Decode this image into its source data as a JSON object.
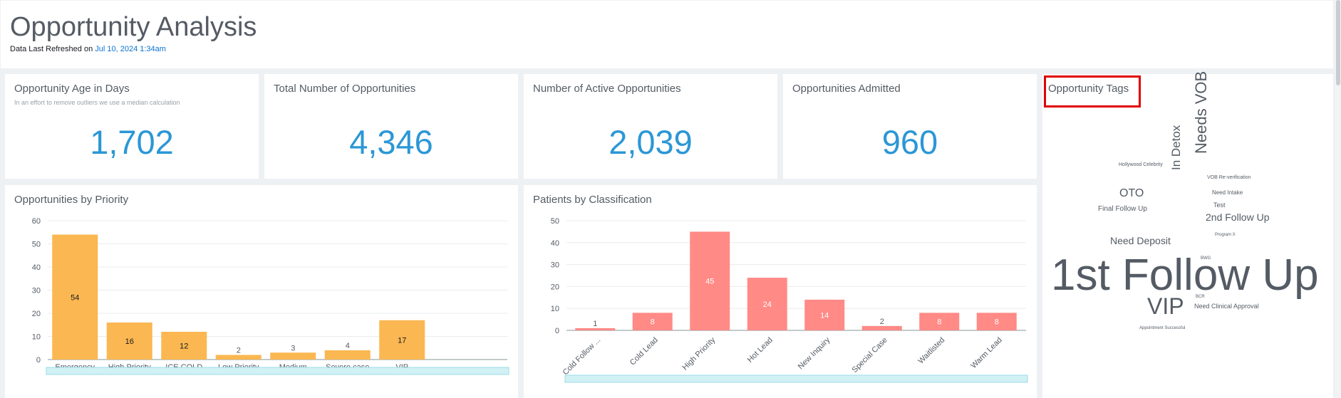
{
  "header": {
    "title": "Opportunity Analysis",
    "refresh_prefix": "Data Last Refreshed on ",
    "refresh_date": "Jul 10, 2024 1:34am"
  },
  "kpis": {
    "age": {
      "title": "Opportunity Age in Days",
      "subtitle": "In an effort to remove outliers we use a median calculation",
      "value": "1,702"
    },
    "total": {
      "title": "Total Number of Opportunities",
      "value": "4,346"
    },
    "active": {
      "title": "Number of Active Opportunities",
      "value": "2,039"
    },
    "admitted": {
      "title": "Opportunities Admitted",
      "value": "960"
    }
  },
  "charts": {
    "priority_title": "Opportunities by Priority",
    "classification_title": "Patients by Classification"
  },
  "tags": {
    "title": "Opportunity Tags",
    "words": [
      {
        "text": "Hollywood Celebrity",
        "size": "small"
      },
      {
        "text": "VOB Re-verification",
        "size": "small"
      },
      {
        "text": "Needs VOB",
        "size": "large",
        "vertical": true
      },
      {
        "text": "In Detox",
        "size": "medium",
        "vertical": true
      },
      {
        "text": "Need Intake",
        "size": "small"
      },
      {
        "text": "OTO",
        "size": "medium"
      },
      {
        "text": "Test",
        "size": "small"
      },
      {
        "text": "Final Follow Up",
        "size": "small"
      },
      {
        "text": "2nd Follow Up",
        "size": "medium"
      },
      {
        "text": "Program X",
        "size": "tiny"
      },
      {
        "text": "Need Deposit",
        "size": "medium"
      },
      {
        "text": "BWG",
        "size": "tiny"
      },
      {
        "text": "1st Follow Up",
        "size": "huge"
      },
      {
        "text": "BCR",
        "size": "tiny"
      },
      {
        "text": "VIP",
        "size": "large"
      },
      {
        "text": "Need Clinical Approval",
        "size": "small"
      },
      {
        "text": "Appointment Successful",
        "size": "small"
      }
    ]
  },
  "chart_data": [
    {
      "type": "bar",
      "title": "Opportunities by Priority",
      "categories": [
        "Emergency",
        "High Priority",
        "ICE COLD",
        "Low Priority",
        "Medium",
        "Severe case",
        "VIP"
      ],
      "values": [
        54,
        16,
        12,
        2,
        3,
        4,
        17
      ],
      "ylim": [
        0,
        60
      ],
      "yticks": [
        0,
        10,
        20,
        30,
        40,
        50,
        60
      ],
      "color": "#fbb751",
      "label_color": "#16191f",
      "xlabel": "",
      "ylabel": ""
    },
    {
      "type": "bar",
      "title": "Patients by Classification",
      "categories": [
        "Cold Follow ...",
        "Cold Lead",
        "High Priority",
        "Hot Lead",
        "New Inquiry",
        "Special Case",
        "Waitlisted",
        "Warm Lead"
      ],
      "values": [
        1,
        8,
        45,
        24,
        14,
        2,
        8,
        8
      ],
      "ylim": [
        0,
        50
      ],
      "yticks": [
        0,
        10,
        20,
        30,
        40,
        50
      ],
      "color": "#ff8a86",
      "label_color": "#ffffff",
      "xlabel": "",
      "ylabel": ""
    }
  ]
}
